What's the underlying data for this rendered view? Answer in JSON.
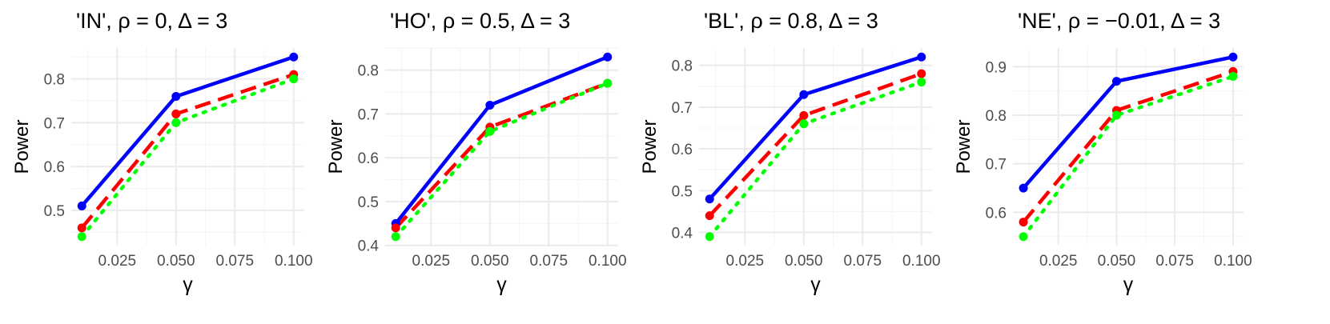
{
  "colors": {
    "series": [
      "#0000FF",
      "#FF0000",
      "#00FF00"
    ],
    "grid_major": "#EBEBEB",
    "grid_minor": "#F5F5F5",
    "axis_text": "#4D4D4D",
    "title_text": "#000000"
  },
  "chart_data": [
    {
      "type": "line",
      "title": "'IN', ρ = 0, Δ = 3",
      "xlabel": "γ",
      "ylabel": "Power",
      "x": [
        0.01,
        0.05,
        0.1
      ],
      "xlim": [
        0.01,
        0.1
      ],
      "ylim": [
        0.44,
        0.85
      ],
      "xticks": [
        0.025,
        0.05,
        0.075,
        0.1
      ],
      "xtick_labels": [
        "0.025",
        "0.050",
        "0.075",
        "0.100"
      ],
      "yticks": [
        0.5,
        0.6,
        0.7,
        0.8
      ],
      "ytick_labels": [
        "0.5",
        "0.6",
        "0.7",
        "0.8"
      ],
      "grid": true,
      "legend": "none",
      "series": [
        {
          "values": [
            0.51,
            0.76,
            0.85
          ],
          "line_style": "solid",
          "color": "#0000FF"
        },
        {
          "values": [
            0.46,
            0.72,
            0.81
          ],
          "line_style": "dashed",
          "color": "#FF0000"
        },
        {
          "values": [
            0.44,
            0.7,
            0.8
          ],
          "line_style": "dotted",
          "color": "#00FF00"
        }
      ]
    },
    {
      "type": "line",
      "title": "'HO', ρ = 0.5, Δ = 3",
      "xlabel": "γ",
      "ylabel": "Power",
      "x": [
        0.01,
        0.05,
        0.1
      ],
      "xlim": [
        0.01,
        0.1
      ],
      "ylim": [
        0.42,
        0.83
      ],
      "xticks": [
        0.025,
        0.05,
        0.075,
        0.1
      ],
      "xtick_labels": [
        "0.025",
        "0.050",
        "0.075",
        "0.100"
      ],
      "yticks": [
        0.4,
        0.5,
        0.6,
        0.7,
        0.8
      ],
      "ytick_labels": [
        "0.4",
        "0.5",
        "0.6",
        "0.7",
        "0.8"
      ],
      "grid": true,
      "legend": "none",
      "series": [
        {
          "values": [
            0.45,
            0.72,
            0.83
          ],
          "line_style": "solid",
          "color": "#0000FF"
        },
        {
          "values": [
            0.44,
            0.67,
            0.77
          ],
          "line_style": "dashed",
          "color": "#FF0000"
        },
        {
          "values": [
            0.42,
            0.66,
            0.77
          ],
          "line_style": "dotted",
          "color": "#00FF00"
        }
      ]
    },
    {
      "type": "line",
      "title": "'BL', ρ = 0.8, Δ = 3",
      "xlabel": "γ",
      "ylabel": "Power",
      "x": [
        0.01,
        0.05,
        0.1
      ],
      "xlim": [
        0.01,
        0.1
      ],
      "ylim": [
        0.39,
        0.82
      ],
      "xticks": [
        0.025,
        0.05,
        0.075,
        0.1
      ],
      "xtick_labels": [
        "0.025",
        "0.050",
        "0.075",
        "0.100"
      ],
      "yticks": [
        0.4,
        0.5,
        0.6,
        0.7,
        0.8
      ],
      "ytick_labels": [
        "0.4",
        "0.5",
        "0.6",
        "0.7",
        "0.8"
      ],
      "grid": true,
      "legend": "none",
      "series": [
        {
          "values": [
            0.48,
            0.73,
            0.82
          ],
          "line_style": "solid",
          "color": "#0000FF"
        },
        {
          "values": [
            0.44,
            0.68,
            0.78
          ],
          "line_style": "dashed",
          "color": "#FF0000"
        },
        {
          "values": [
            0.39,
            0.66,
            0.76
          ],
          "line_style": "dotted",
          "color": "#00FF00"
        }
      ]
    },
    {
      "type": "line",
      "title": "'NE', ρ = −0.01, Δ = 3",
      "xlabel": "γ",
      "ylabel": "Power",
      "x": [
        0.01,
        0.05,
        0.1
      ],
      "xlim": [
        0.01,
        0.1
      ],
      "ylim": [
        0.55,
        0.92
      ],
      "xticks": [
        0.025,
        0.05,
        0.075,
        0.1
      ],
      "xtick_labels": [
        "0.025",
        "0.050",
        "0.075",
        "0.100"
      ],
      "yticks": [
        0.6,
        0.7,
        0.8,
        0.9
      ],
      "ytick_labels": [
        "0.6",
        "0.7",
        "0.8",
        "0.9"
      ],
      "grid": true,
      "legend": "none",
      "series": [
        {
          "values": [
            0.65,
            0.87,
            0.92
          ],
          "line_style": "solid",
          "color": "#0000FF"
        },
        {
          "values": [
            0.58,
            0.81,
            0.89
          ],
          "line_style": "dashed",
          "color": "#FF0000"
        },
        {
          "values": [
            0.55,
            0.8,
            0.88
          ],
          "line_style": "dotted",
          "color": "#00FF00"
        }
      ]
    }
  ]
}
